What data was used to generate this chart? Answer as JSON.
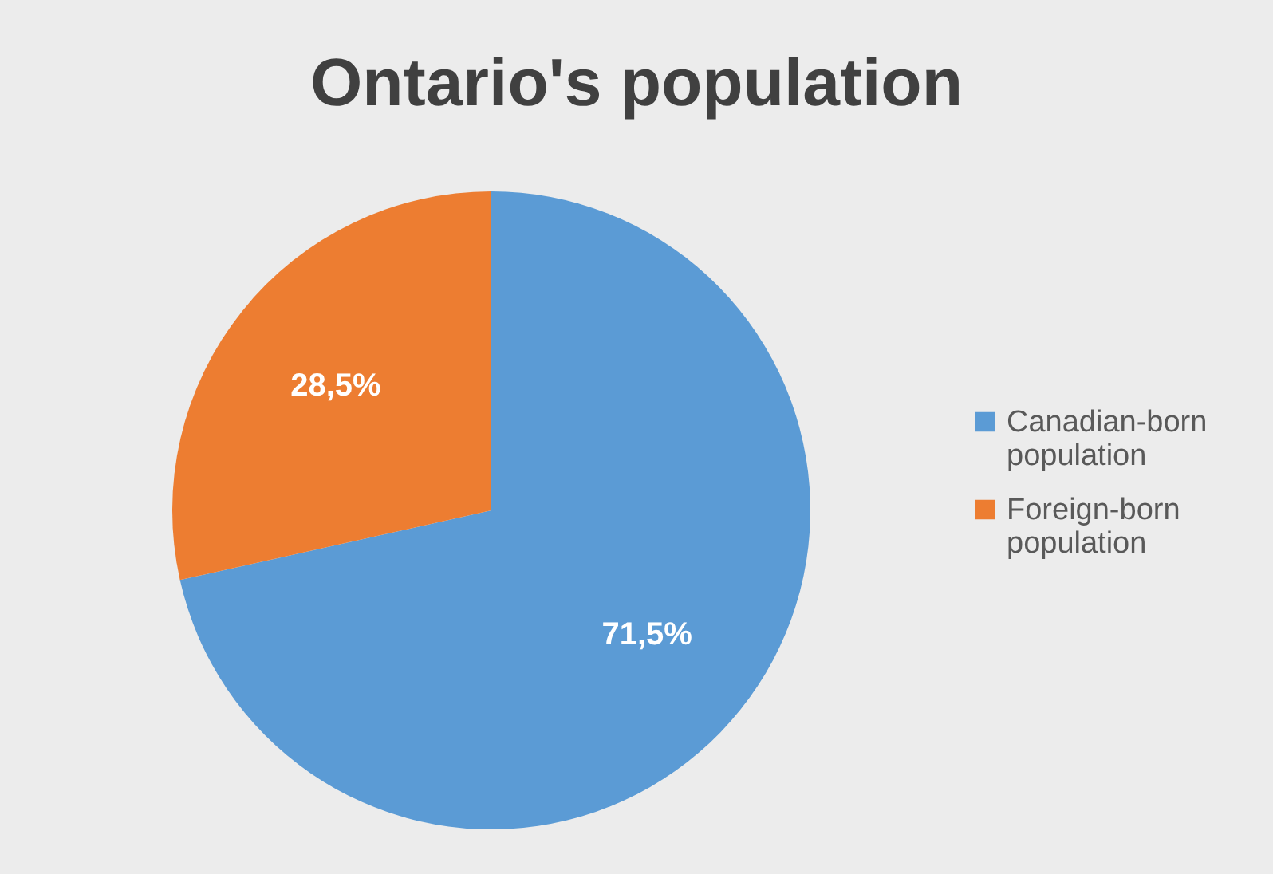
{
  "chart_data": {
    "type": "pie",
    "title": "Ontario's population",
    "categories": [
      "Canadian-born population",
      "Foreign-born population"
    ],
    "values": [
      71.5,
      28.5
    ],
    "colors": [
      "#5b9bd5",
      "#ed7d31"
    ],
    "value_labels": [
      "71,5%",
      "28,5%"
    ],
    "legend": "right"
  }
}
